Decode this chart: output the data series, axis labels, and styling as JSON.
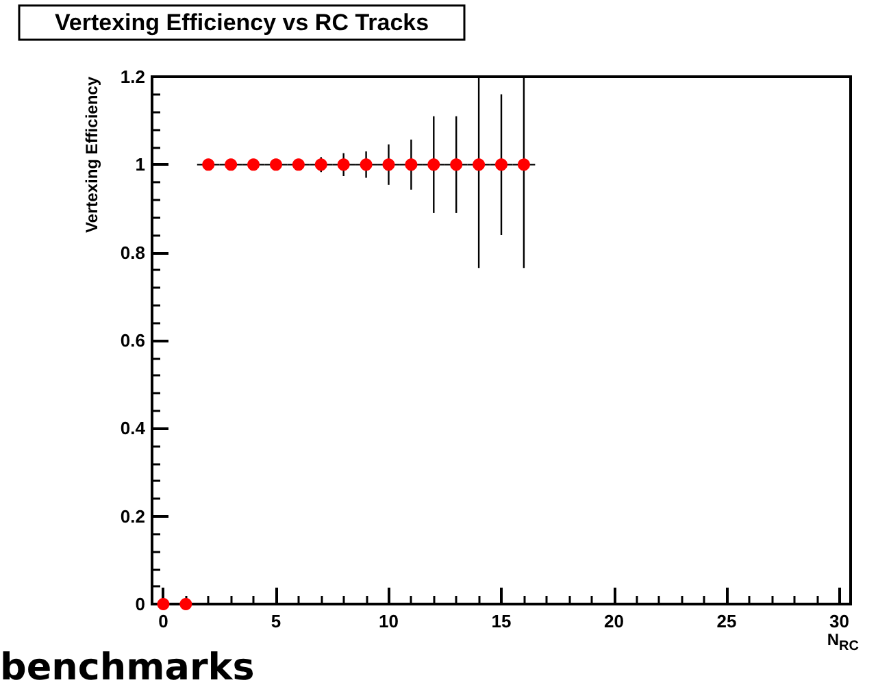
{
  "chart_data": {
    "type": "scatter",
    "title": "Vertexing Efficiency vs RC Tracks",
    "xlabel": "N$_{RC}$",
    "ylabel": "Vertexing Efficiency",
    "annotations": [
      "benchmarks"
    ],
    "x": [
      0,
      1,
      2,
      3,
      4,
      5,
      6,
      7,
      8,
      9,
      10,
      11,
      12,
      13,
      14,
      15,
      16
    ],
    "series": [
      {
        "color": "#ff0000",
        "values": [
          0,
          0,
          1,
          1,
          1,
          1,
          1,
          1,
          1,
          1,
          1,
          1,
          1,
          1,
          1,
          1,
          1
        ],
        "errors": [
          null,
          null,
          null,
          null,
          null,
          null,
          null,
          0.017,
          0.026,
          0.03,
          0.046,
          0.057,
          0.11,
          0.11,
          [
            0.765,
            1.2
          ],
          [
            0.84,
            1.16
          ],
          [
            0.765,
            1.2
          ]
        ],
        "xerrors": [
          null,
          null,
          0.5,
          0.5,
          0.5,
          0.5,
          0.5,
          0.5,
          0.5,
          0.5,
          0.5,
          0.5,
          0.5,
          0.5,
          0.5,
          0.5,
          0.5
        ]
      }
    ],
    "xlim": [
      -0.5,
      30.5
    ],
    "xticks": [
      0,
      5,
      10,
      15,
      20,
      25,
      30
    ],
    "ylim": [
      0,
      1.2
    ],
    "yticks": [
      0,
      0.2,
      0.4,
      0.6,
      0.8,
      1,
      1.2
    ],
    "grid": false,
    "legend": false,
    "marker": "circle"
  }
}
